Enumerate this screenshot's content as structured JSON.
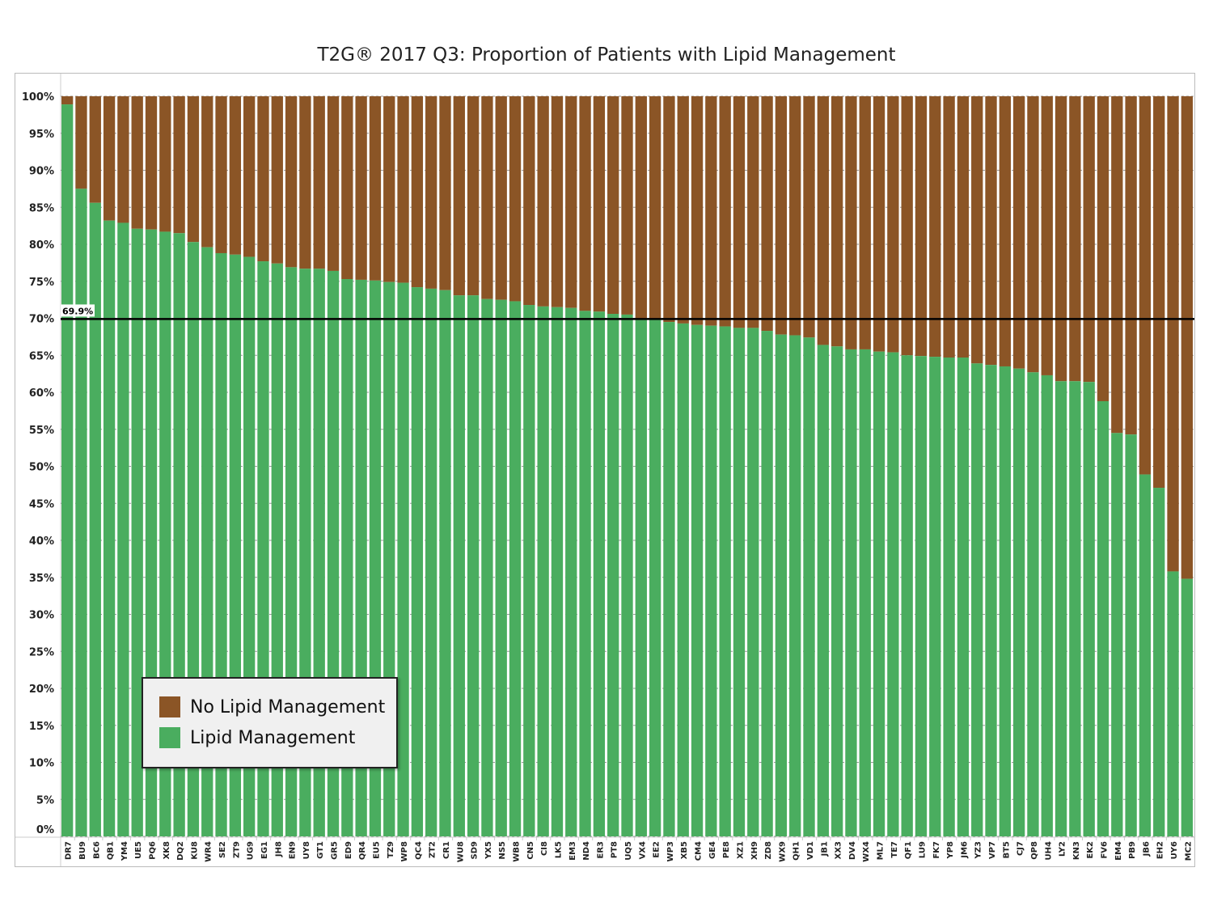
{
  "chart_data": {
    "type": "bar",
    "stacked": true,
    "title": "T2G® 2017 Q3: Proportion of Patients with Lipid Management",
    "xlabel": "",
    "ylabel": "",
    "ylim": [
      0,
      100
    ],
    "yticks": [
      "0%",
      "5%",
      "10%",
      "15%",
      "20%",
      "25%",
      "30%",
      "35%",
      "40%",
      "45%",
      "50%",
      "55%",
      "60%",
      "65%",
      "70%",
      "75%",
      "80%",
      "85%",
      "90%",
      "95%",
      "100%"
    ],
    "grid": true,
    "legend_position": "bottom-left",
    "reference_line": {
      "value": 69.9,
      "label": "69.9%"
    },
    "categories": [
      "DR7",
      "BU9",
      "BC6",
      "QB1",
      "YM4",
      "UE5",
      "PQ6",
      "XK8",
      "DQ2",
      "KU8",
      "WR4",
      "SE2",
      "ZT9",
      "UG9",
      "EG1",
      "JH8",
      "EN9",
      "UY8",
      "GT1",
      "GR5",
      "ED9",
      "QR4",
      "EU5",
      "TZ9",
      "WP8",
      "QC4",
      "ZT2",
      "CR1",
      "WU8",
      "SD9",
      "YX5",
      "NS5",
      "WB8",
      "CN5",
      "CI8",
      "LK5",
      "EM3",
      "ND4",
      "ER3",
      "PT8",
      "UQ5",
      "VX4",
      "EE2",
      "WP3",
      "XB5",
      "CM4",
      "GE4",
      "PE8",
      "XZ1",
      "XH9",
      "ZD8",
      "WX9",
      "QH1",
      "VD1",
      "JB1",
      "XX3",
      "DV4",
      "WX4",
      "ML7",
      "TE7",
      "QF1",
      "LU9",
      "FK7",
      "YP8",
      "JM6",
      "YZ3",
      "VP7",
      "BT5",
      "CJ7",
      "QP8",
      "UH4",
      "LY2",
      "KN3",
      "EK2",
      "FV6",
      "EM4",
      "PB9",
      "JB6",
      "EH2",
      "UY6",
      "MC2"
    ],
    "series": [
      {
        "name": "Lipid Management",
        "color": "#4aad5f",
        "values": [
          98.9,
          87.5,
          85.6,
          83.2,
          82.9,
          82.1,
          82.0,
          81.7,
          81.5,
          80.3,
          79.6,
          78.8,
          78.6,
          78.3,
          77.7,
          77.4,
          76.9,
          76.7,
          76.7,
          76.4,
          75.3,
          75.2,
          75.1,
          74.9,
          74.8,
          74.2,
          74.0,
          73.8,
          73.1,
          73.1,
          72.6,
          72.5,
          72.3,
          71.8,
          71.6,
          71.5,
          71.4,
          71.0,
          70.9,
          70.6,
          70.5,
          69.9,
          69.8,
          69.5,
          69.3,
          69.1,
          69.0,
          68.9,
          68.7,
          68.7,
          68.3,
          67.8,
          67.7,
          67.4,
          66.4,
          66.2,
          65.8,
          65.8,
          65.5,
          65.4,
          65.0,
          64.9,
          64.8,
          64.7,
          64.7,
          63.9,
          63.7,
          63.5,
          63.2,
          62.7,
          62.3,
          61.5,
          61.5,
          61.4,
          58.8,
          54.5,
          54.3,
          48.9,
          47.1,
          35.8,
          34.8
        ]
      },
      {
        "name": "No Lipid Management",
        "color": "#8b5526",
        "values": "remainder to 100%"
      }
    ]
  }
}
